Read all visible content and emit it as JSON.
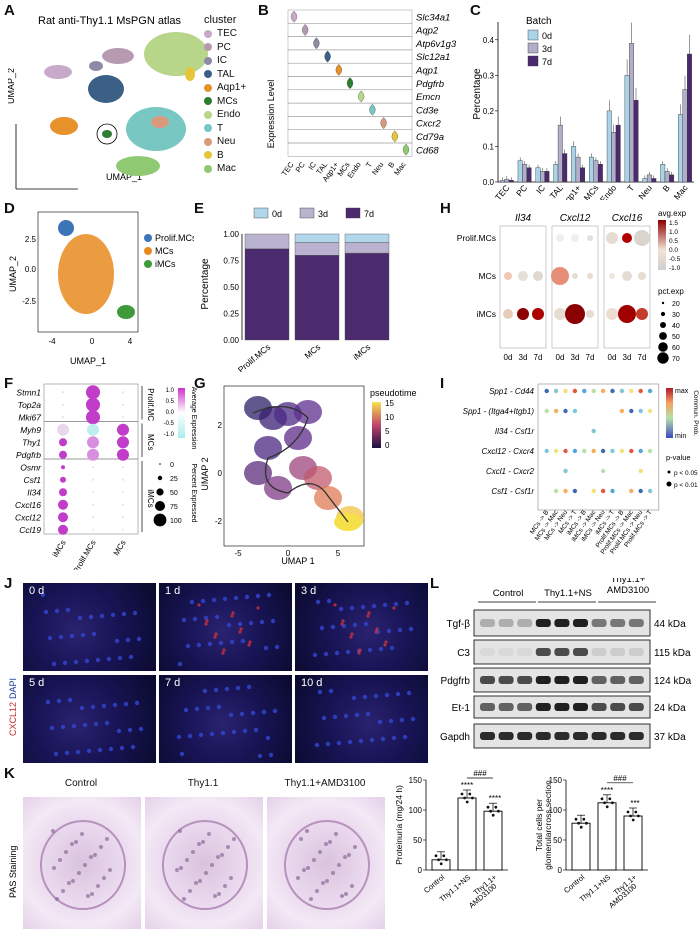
{
  "panels": {
    "A": "A",
    "B": "B",
    "C": "C",
    "D": "D",
    "E": "E",
    "F": "F",
    "G": "G",
    "H": "H",
    "I": "I",
    "J": "J",
    "K": "K",
    "L": "L"
  },
  "a": {
    "title": "Rat anti-Thy1.1 MsPGN atlas",
    "xlabel": "UMAP_1",
    "ylabel": "UMAP_2",
    "legend_title": "cluster",
    "clusters": [
      {
        "name": "TEC",
        "color": "#c9a9c9"
      },
      {
        "name": "PC",
        "color": "#b59ab0"
      },
      {
        "name": "IC",
        "color": "#8e8aa6"
      },
      {
        "name": "TAL",
        "color": "#3b5f85"
      },
      {
        "name": "Aqp1+",
        "color": "#e8922b"
      },
      {
        "name": "MCs",
        "color": "#2e7d32"
      },
      {
        "name": "Endo",
        "color": "#b8d68a"
      },
      {
        "name": "T",
        "color": "#79c7c3"
      },
      {
        "name": "Neu",
        "color": "#d89a7a"
      },
      {
        "name": "B",
        "color": "#e6c53a"
      },
      {
        "name": "Mac",
        "color": "#8fc971"
      }
    ]
  },
  "b": {
    "ylabel": "Expression Level",
    "genes": [
      "Slc34a1",
      "Aqp2",
      "Atp6v1g3",
      "Slc12a1",
      "Aqp1",
      "Pdgfrb",
      "Emcn",
      "Cd3e",
      "Cxcr2",
      "Cd79a",
      "Cd68"
    ],
    "clusters": [
      "TEC",
      "PC",
      "IC",
      "TAL",
      "Aqp1+",
      "MCs",
      "Endo",
      "T",
      "Neu",
      "B",
      "Mac"
    ]
  },
  "c": {
    "ylabel": "Percentage",
    "legend_title": "Batch",
    "chart_data": {
      "type": "bar",
      "categories": [
        "TEC",
        "PC",
        "IC",
        "TAL",
        "Aqp1+",
        "MCs",
        "Endo",
        "T",
        "Neu",
        "B",
        "Mac"
      ],
      "series": [
        {
          "name": "0d",
          "color": "#a9d3e8",
          "values": [
            0.005,
            0.06,
            0.04,
            0.05,
            0.1,
            0.07,
            0.2,
            0.3,
            0.01,
            0.05,
            0.19
          ]
        },
        {
          "name": "3d",
          "color": "#b0aec9",
          "values": [
            0.008,
            0.05,
            0.03,
            0.16,
            0.07,
            0.06,
            0.14,
            0.39,
            0.02,
            0.03,
            0.26
          ]
        },
        {
          "name": "7d",
          "color": "#4b2a6e",
          "values": [
            0.005,
            0.04,
            0.03,
            0.08,
            0.04,
            0.05,
            0.16,
            0.23,
            0.01,
            0.02,
            0.36
          ]
        }
      ],
      "ylim": [
        0,
        0.45
      ],
      "yticks": [
        "0.0",
        "0.1",
        "0.2",
        "0.3",
        "0.4"
      ]
    }
  },
  "d": {
    "xlabel": "UMAP_1",
    "ylabel": "UMAP_2",
    "xticks": [
      "-4",
      "0",
      "4"
    ],
    "yticks": [
      "2.5",
      "0.0",
      "-2.5"
    ],
    "legend": [
      {
        "name": "Prolif.MCs",
        "color": "#3b74b7"
      },
      {
        "name": "MCs",
        "color": "#e8891e"
      },
      {
        "name": "iMCs",
        "color": "#3e9a3a"
      }
    ]
  },
  "e": {
    "ylabel": "Percentage",
    "chart_data": {
      "type": "bar",
      "categories": [
        "Prolif.MCs",
        "MCs",
        "iMCs"
      ],
      "series": [
        {
          "name": "0d",
          "color": "#b3d7ea",
          "values": [
            0.0,
            0.08,
            0.08
          ]
        },
        {
          "name": "3d",
          "color": "#b9b3cf",
          "values": [
            0.14,
            0.12,
            0.1
          ]
        },
        {
          "name": "7d",
          "color": "#4b2a6e",
          "values": [
            0.86,
            0.8,
            0.82
          ]
        }
      ],
      "ylim": [
        0,
        1
      ],
      "yticks": [
        "0.00",
        "0.25",
        "0.50",
        "0.75",
        "1.00"
      ]
    }
  },
  "f": {
    "genes": [
      "Stmn1",
      "Top2a",
      "Mki67",
      "Myh9",
      "Thy1",
      "Pdgfrb",
      "Osmr",
      "Csf1",
      "Il34",
      "Cxcl16",
      "Cxcl12",
      "Ccl19"
    ],
    "groups": [
      "iMCs",
      "Prolif.MCs",
      "MCs"
    ],
    "side": [
      "Prolif.MC",
      "MCs",
      "iMCs"
    ],
    "legend_title": "Average Expression",
    "legend_ticks": [
      "1.0",
      "0.5",
      "0.0",
      "-0.5",
      "-1.0"
    ],
    "size_title": "Percent Expressed",
    "size_ticks": [
      "0",
      "25",
      "50",
      "75",
      "100"
    ]
  },
  "g": {
    "xlabel": "UMAP 1",
    "ylabel": "UMAP 2",
    "legend_title": "pseudotime",
    "legend_ticks": [
      "15",
      "10",
      "5",
      "0"
    ],
    "xticks": [
      "-5",
      "0",
      "5"
    ],
    "yticks": [
      "2",
      "0",
      "-2"
    ]
  },
  "h": {
    "genes": [
      "Il34",
      "Cxcl12",
      "Cxcl16"
    ],
    "rows": [
      "Prolif.MCs",
      "MCs",
      "iMCs"
    ],
    "cols": [
      "0d",
      "3d",
      "7d"
    ],
    "legend_title": "avg.exp",
    "legend_ticks": [
      "1.5",
      "1.0",
      "0.5",
      "0.0",
      "-0.5",
      "-1.0"
    ],
    "size_title": "pct.exp",
    "size_ticks": [
      "20",
      "30",
      "40",
      "50",
      "60",
      "70"
    ]
  },
  "i": {
    "pairs": [
      "Spp1 - Cd44",
      "Spp1 - (Itga4+Itgb1)",
      "Il34 - Csf1r",
      "Cxcl12 - Cxcr4",
      "Cxcl1 - Cxcr2",
      "Csf1 - Csf1r"
    ],
    "cols": [
      "MCs -> B",
      "MCs -> Mac",
      "MCs -> Neu",
      "MCs -> T",
      "iMCs -> B",
      "iMCs -> Mac",
      "iMCs -> Neu",
      "iMCs -> T",
      "Prolif.MCs -> B",
      "Prolif.MCs -> Mac",
      "Prolif.MCs -> Neu",
      "Prolif.MCs -> T"
    ],
    "legend_title": "Commun. Prob.",
    "legend_max": "max",
    "legend_min": "min",
    "p_title": "p-value",
    "p1": "p < 0.05",
    "p2": "p < 0.01"
  },
  "j": {
    "side_label_red": "CXCL12",
    "side_label_blue": "DAPI",
    "times": [
      "0 d",
      "1 d",
      "3 d",
      "5 d",
      "7 d",
      "10 d"
    ]
  },
  "k": {
    "side_label": "PAS Staining",
    "titles": [
      "Control",
      "Thy1.1",
      "Thy1.1+AMD3100"
    ]
  },
  "l": {
    "groups": [
      "Control",
      "Thy1.1+NS",
      "Thy1.1+\nAMD3100"
    ],
    "bands": [
      {
        "name": "Tgf-β",
        "kda": "44 kDa"
      },
      {
        "name": "C3",
        "kda": "115 kDa"
      },
      {
        "name": "Pdgfrb",
        "kda": "124 kDa"
      },
      {
        "name": "Et-1",
        "kda": "24 kDa"
      },
      {
        "name": "Gapdh",
        "kda": "37 kDa"
      }
    ],
    "prot": {
      "ylabel": "Proteinuria (mg/24 h)",
      "yticks": [
        "0",
        "50",
        "100",
        "150"
      ],
      "cats": [
        "Control",
        "Thy1.1+NS",
        "Thy1.1+\nAMD3100"
      ],
      "values": [
        17,
        120,
        98
      ],
      "sig": [
        "****",
        "****",
        "###"
      ],
      "chart_data": {
        "type": "bar",
        "categories": [
          "Control",
          "Thy1.1+NS",
          "Thy1.1+AMD3100"
        ],
        "values": [
          17,
          120,
          98
        ],
        "ylim": [
          0,
          150
        ]
      }
    },
    "cells": {
      "ylabel": "Total cells per glomerularcross section",
      "yticks": [
        "0",
        "50",
        "100",
        "150"
      ],
      "cats": [
        "Control",
        "Thy1.1+NS",
        "Thy1.1+\nAMD3100"
      ],
      "values": [
        78,
        112,
        90
      ],
      "sig": [
        "****",
        "***",
        "###"
      ],
      "chart_data": {
        "type": "bar",
        "categories": [
          "Control",
          "Thy1.1+NS",
          "Thy1.1+AMD3100"
        ],
        "values": [
          78,
          112,
          90
        ],
        "ylim": [
          0,
          150
        ]
      }
    }
  }
}
